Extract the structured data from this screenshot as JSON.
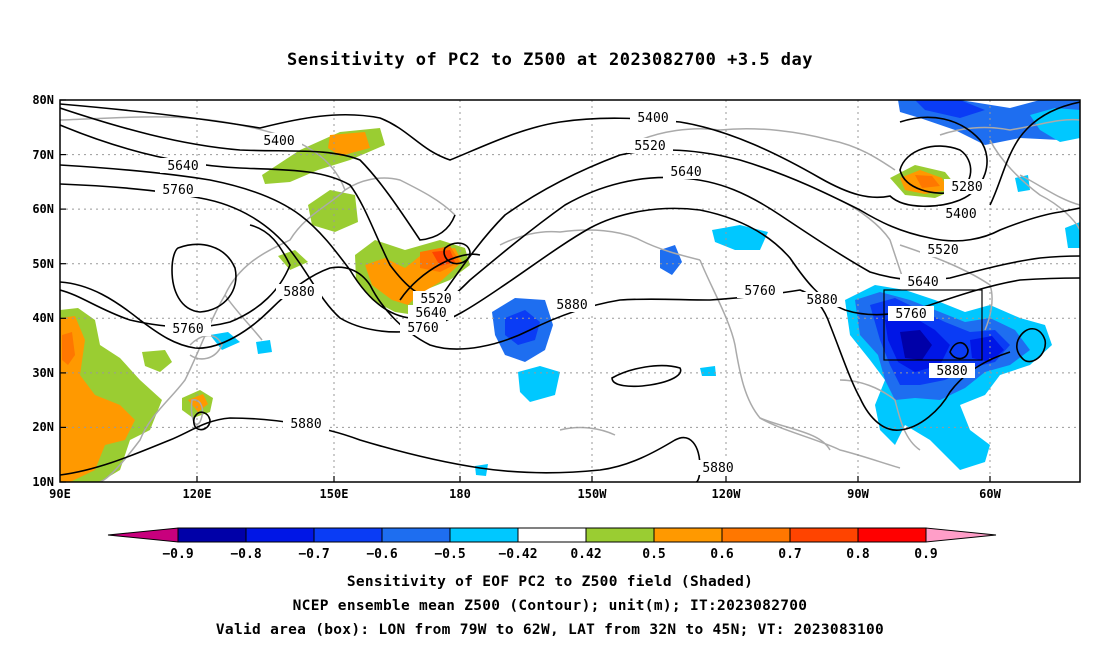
{
  "title": "Sensitivity of PC2 to Z500 at 2023082700 +3.5 day",
  "map": {
    "lat_labels": [
      "80N",
      "70N",
      "60N",
      "50N",
      "40N",
      "30N",
      "20N",
      "10N"
    ],
    "lon_labels": [
      "90E",
      "120E",
      "150E",
      "180",
      "150W",
      "120W",
      "90W",
      "60W"
    ],
    "lon_range": [
      "90E",
      "48W"
    ],
    "lat_range": [
      "10N",
      "80N"
    ],
    "grid": "dotted",
    "contour_labels": [
      {
        "id": "c5400a",
        "text": "5400"
      },
      {
        "id": "c5400b",
        "text": "5400"
      },
      {
        "id": "c5400c",
        "text": "5400"
      },
      {
        "id": "c5520a",
        "text": "5520"
      },
      {
        "id": "c5520b",
        "text": "5520"
      },
      {
        "id": "c5520c",
        "text": "5520"
      },
      {
        "id": "c5640a",
        "text": "5640"
      },
      {
        "id": "c5640b",
        "text": "5640"
      },
      {
        "id": "c5640c",
        "text": "5640"
      },
      {
        "id": "c5640d",
        "text": "5640"
      },
      {
        "id": "c5760a",
        "text": "5760"
      },
      {
        "id": "c5760b",
        "text": "5760"
      },
      {
        "id": "c5760c",
        "text": "5760"
      },
      {
        "id": "c5760d",
        "text": "5760"
      },
      {
        "id": "c5760e",
        "text": "5760"
      },
      {
        "id": "c5280a",
        "text": "5280"
      },
      {
        "id": "c5880a",
        "text": "5880"
      },
      {
        "id": "c5880b",
        "text": "5880"
      },
      {
        "id": "c5880c",
        "text": "5880"
      },
      {
        "id": "c5880d",
        "text": "5880"
      },
      {
        "id": "c5880e",
        "text": "5880"
      },
      {
        "id": "c5880f",
        "text": "5880"
      }
    ],
    "valid_box": {
      "lon": [
        "79W",
        "62W"
      ],
      "lat": [
        "32N",
        "45N"
      ]
    }
  },
  "colorbar": {
    "labels": [
      "−0.9",
      "−0.8",
      "−0.7",
      "−0.6",
      "−0.5",
      "−0.42",
      "0.42",
      "0.5",
      "0.6",
      "0.7",
      "0.8",
      "0.9"
    ],
    "colors": [
      "#0000a8",
      "#0016e6",
      "#0a3cf5",
      "#1e6ef0",
      "#00c8ff",
      "#ffffff",
      "#9acd32",
      "#ff9900",
      "#ff7700",
      "#ff4400",
      "#ff0000"
    ],
    "low_extend_color": "#c8007d",
    "high_extend_color": "#ff9ec8"
  },
  "captions": [
    "Sensitivity of EOF PC2 to Z500 field (Shaded)",
    "NCEP ensemble mean Z500 (Contour); unit(m); IT:2023082700",
    "Valid area (box): LON from 79W to 62W, LAT from 32N to 45N; VT: 2023083100"
  ]
}
